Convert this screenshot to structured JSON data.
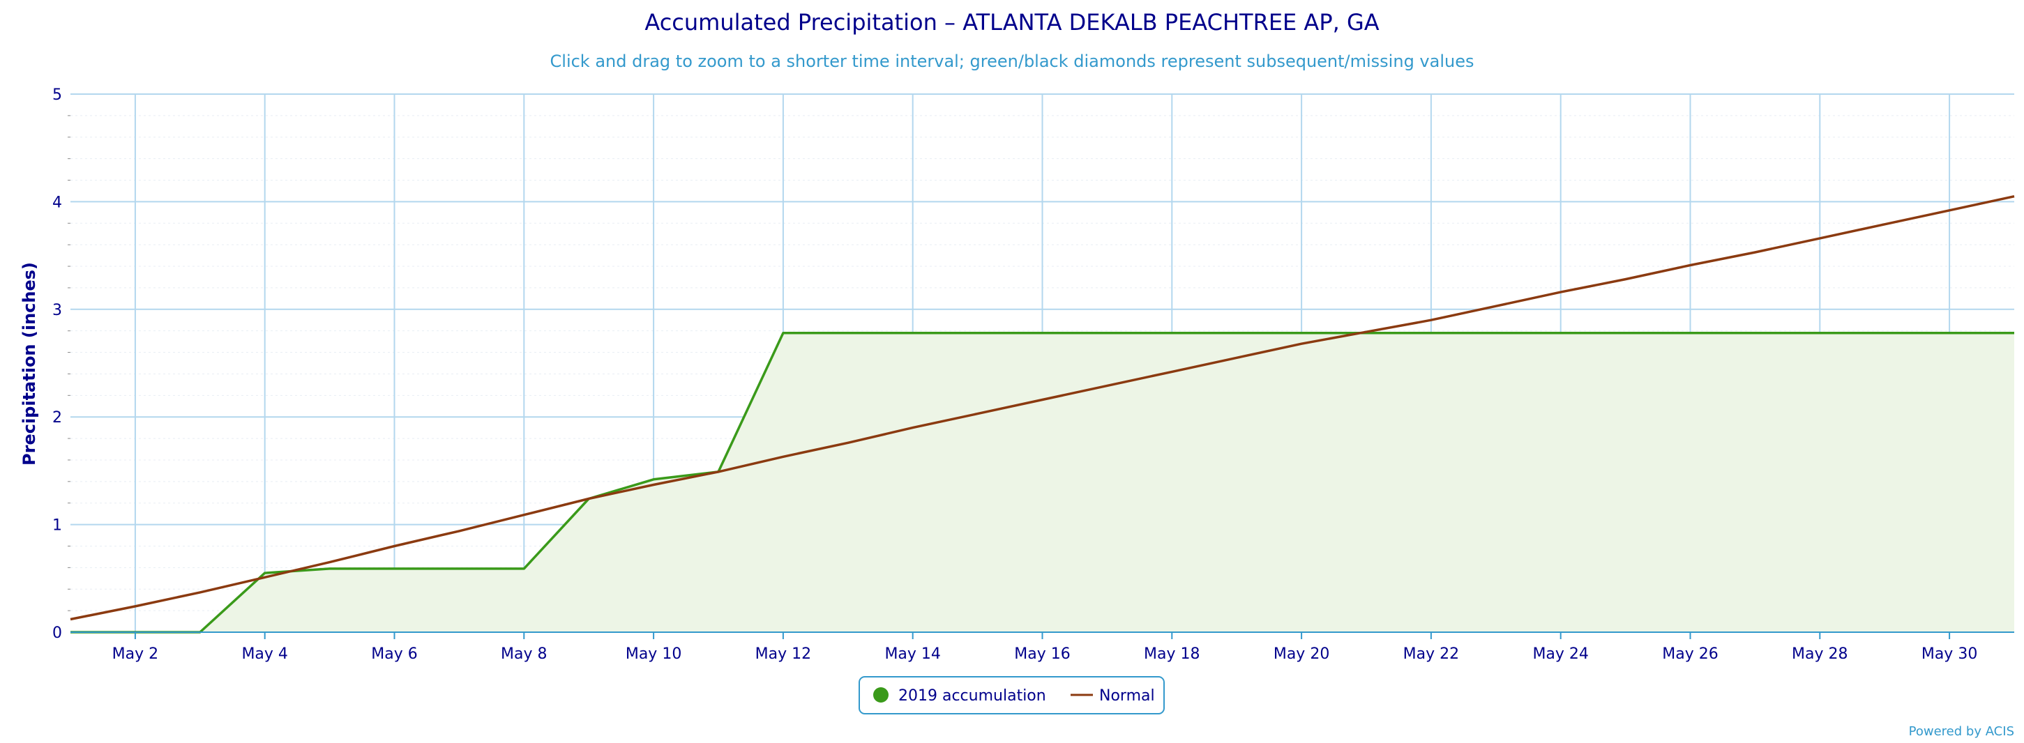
{
  "chart_data": {
    "type": "area",
    "title": "Accumulated Precipitation – ATLANTA DEKALB PEACHTREE AP, GA",
    "subtitle": "Click and drag to zoom to a shorter time interval; green/black diamonds represent subsequent/missing values",
    "ylabel": "Precipitation (inches)",
    "xlabel": "",
    "ylim": [
      0,
      5
    ],
    "y_ticks": [
      0,
      1,
      2,
      3,
      4,
      5
    ],
    "y_tick_labels": [
      "0",
      "1",
      "2",
      "3",
      "4",
      "5"
    ],
    "x_range_days": [
      1,
      31
    ],
    "x_ticks": [
      2,
      4,
      6,
      8,
      10,
      12,
      14,
      16,
      18,
      20,
      22,
      24,
      26,
      28,
      30
    ],
    "x_tick_labels": [
      "May 2",
      "May 4",
      "May 6",
      "May 8",
      "May 10",
      "May 12",
      "May 14",
      "May 16",
      "May 18",
      "May 20",
      "May 22",
      "May 24",
      "May 26",
      "May 28",
      "May 30"
    ],
    "grid": true,
    "legend_position": "bottom-center",
    "series": [
      {
        "name": "2019 accumulation",
        "color": "#3a9a1a",
        "fill_color": "#edf5e6",
        "kind": "area",
        "x": [
          1,
          2,
          3,
          4,
          5,
          6,
          7,
          8,
          9,
          10,
          11,
          12,
          13,
          14,
          15,
          16,
          17,
          18,
          19,
          20,
          21,
          22,
          23,
          24,
          25,
          26,
          27,
          28,
          29,
          30,
          31
        ],
        "y": [
          0,
          0,
          0,
          0.55,
          0.59,
          0.59,
          0.59,
          0.59,
          1.24,
          1.42,
          1.49,
          2.78,
          2.78,
          2.78,
          2.78,
          2.78,
          2.78,
          2.78,
          2.78,
          2.78,
          2.78,
          2.78,
          2.78,
          2.78,
          2.78,
          2.78,
          2.78,
          2.78,
          2.78,
          2.78,
          2.78
        ]
      },
      {
        "name": "Normal",
        "color": "#8b3a10",
        "kind": "line",
        "x": [
          1,
          2,
          3,
          4,
          5,
          6,
          7,
          8,
          9,
          10,
          11,
          12,
          13,
          14,
          15,
          16,
          17,
          18,
          19,
          20,
          21,
          22,
          23,
          24,
          25,
          26,
          27,
          28,
          29,
          30,
          31
        ],
        "y": [
          0.12,
          0.24,
          0.37,
          0.51,
          0.65,
          0.8,
          0.94,
          1.09,
          1.24,
          1.37,
          1.49,
          1.63,
          1.76,
          1.9,
          2.03,
          2.16,
          2.29,
          2.42,
          2.55,
          2.68,
          2.79,
          2.9,
          3.03,
          3.16,
          3.28,
          3.41,
          3.53,
          3.66,
          3.79,
          3.92,
          4.05
        ]
      }
    ],
    "credits": "Powered by ACIS"
  }
}
